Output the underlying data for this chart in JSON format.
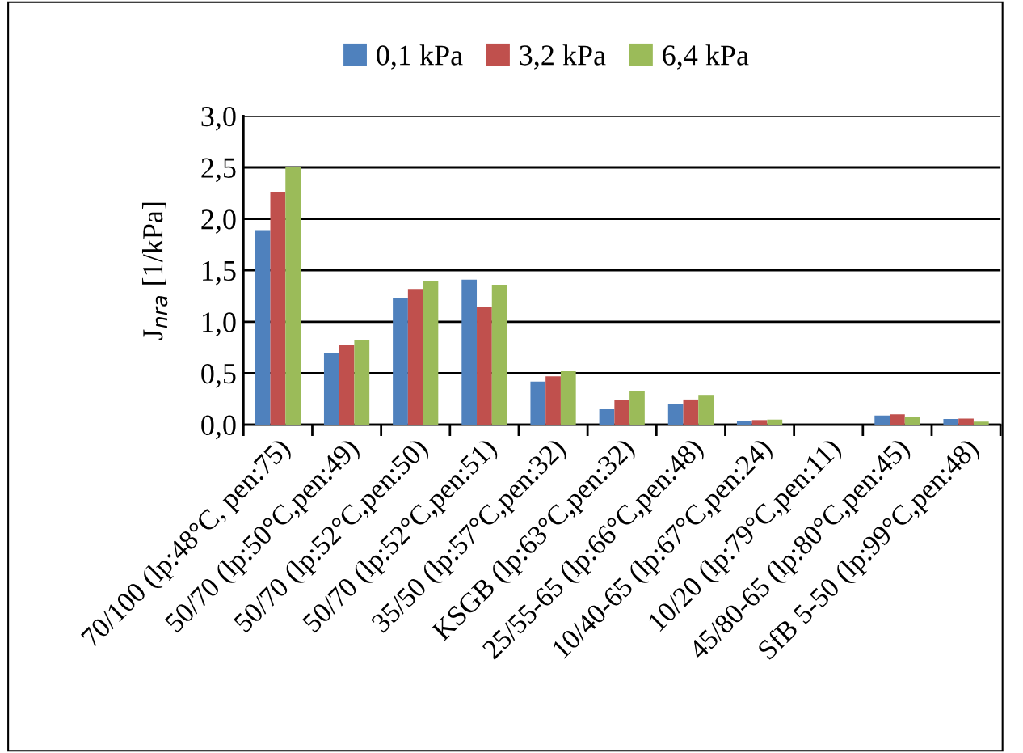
{
  "chart_data": {
    "type": "bar",
    "ylabel": "J$_{nra}$ [1/kPa]",
    "categories": [
      "70/100 (lp:48°C, pen:75)",
      "50/70 (lp:50°C,pen:49)",
      "50/70 (lp:52°C,pen:50)",
      "50/70 (lp:52°C,pen:51)",
      "35/50 (lp:57°C,pen:32)",
      "KSGB (lp:63°C,pen:32)",
      "25/55-65 (lp:66°C,pen:48)",
      "10/40-65 (lp:67°C,pen:24)",
      "10/20 (lp:79°C,pen:11)",
      "45/80-65 (lp:80°C,pen:45)",
      "SfB 5-50 (lp:99°C,pen:48)"
    ],
    "series": [
      {
        "name": "0,1 kPa",
        "color": "#4f81bd",
        "values": [
          1.89,
          0.7,
          1.23,
          1.41,
          0.42,
          0.15,
          0.2,
          0.04,
          0,
          0.09,
          0.055
        ]
      },
      {
        "name": "3,2 kPa",
        "color": "#c0504d",
        "values": [
          2.26,
          0.77,
          1.32,
          1.14,
          0.47,
          0.24,
          0.245,
          0.045,
          0,
          0.1,
          0.06
        ]
      },
      {
        "name": "6,4 kPa",
        "color": "#9bbb59",
        "values": [
          2.5,
          0.825,
          1.4,
          1.36,
          0.52,
          0.33,
          0.29,
          0.05,
          0,
          0.075,
          0.03
        ]
      }
    ],
    "ylim": [
      0,
      3.0
    ],
    "yticks": [
      {
        "value": 0,
        "label": "0,0"
      },
      {
        "value": 0.5,
        "label": "0,5"
      },
      {
        "value": 1.0,
        "label": "1,0"
      },
      {
        "value": 1.5,
        "label": "1,5"
      },
      {
        "value": 2.0,
        "label": "2,0"
      },
      {
        "value": 2.5,
        "label": "2,5"
      },
      {
        "value": 3.0,
        "label": "3,0"
      }
    ],
    "grid": "y",
    "legend": "top"
  }
}
